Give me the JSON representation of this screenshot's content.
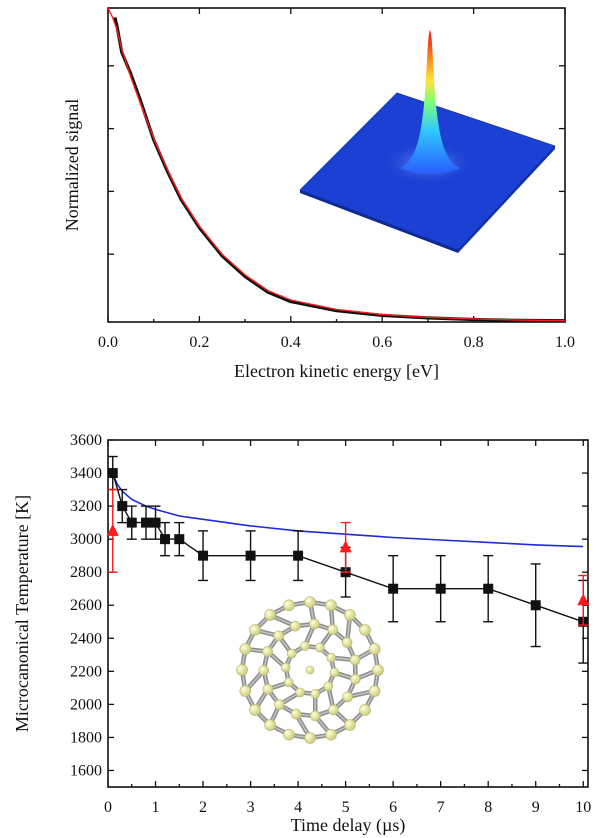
{
  "colors": {
    "black_series": "#111111",
    "red_series": "#ff1a1a",
    "blue_series": "#1f2bd6",
    "inset_surface": "#1a3fd0",
    "molecule": "#e6e69a",
    "bonds": "#9a9a9a"
  },
  "chart_data": [
    {
      "type": "line",
      "title": "",
      "xlabel": "Electron kinetic energy [eV]",
      "ylabel": "Normalized signal",
      "xlim": [
        0.0,
        1.0
      ],
      "ylim": [
        0.0,
        1.0
      ],
      "x_ticks": [
        "0.0",
        "0.2",
        "0.4",
        "0.6",
        "0.8",
        "1.0"
      ],
      "y_ticks_labeled": false,
      "grid": false,
      "inset": "3D surface plot of a sharp central peak (velocity map image)",
      "series": [
        {
          "color": "#111111",
          "x": [
            0.015,
            0.02,
            0.03,
            0.05,
            0.07,
            0.1,
            0.13,
            0.16,
            0.2,
            0.25,
            0.3,
            0.35,
            0.4,
            0.5,
            0.6,
            0.7,
            0.8,
            0.9,
            1.0
          ],
          "y": [
            0.97,
            0.94,
            0.86,
            0.79,
            0.71,
            0.58,
            0.48,
            0.39,
            0.3,
            0.21,
            0.145,
            0.095,
            0.065,
            0.036,
            0.021,
            0.013,
            0.008,
            0.005,
            0.004
          ]
        },
        {
          "color": "#ff1a1a",
          "x": [
            0.0,
            0.01,
            0.02,
            0.03,
            0.05,
            0.07,
            0.1,
            0.13,
            0.16,
            0.2,
            0.25,
            0.3,
            0.35,
            0.4,
            0.5,
            0.6,
            0.7,
            0.8,
            0.9,
            1.0
          ],
          "y": [
            1.0,
            0.97,
            0.93,
            0.87,
            0.78,
            0.7,
            0.585,
            0.485,
            0.395,
            0.305,
            0.215,
            0.15,
            0.1,
            0.07,
            0.04,
            0.024,
            0.015,
            0.01,
            0.006,
            0.004
          ]
        }
      ]
    },
    {
      "type": "scatter",
      "title": "",
      "xlabel": "Time delay (µs)",
      "ylabel": "Microcanonical Temperature [K]",
      "xlim": [
        0,
        10.1
      ],
      "ylim": [
        1500,
        3600
      ],
      "x_ticks": [
        "0",
        "1",
        "2",
        "3",
        "4",
        "5",
        "6",
        "7",
        "8",
        "9",
        "10"
      ],
      "y_ticks": [
        "1600",
        "1800",
        "2000",
        "2200",
        "2400",
        "2600",
        "2800",
        "3000",
        "3200",
        "3400",
        "3600"
      ],
      "grid": false,
      "inset": "ball-and-stick C60 fullerene molecule",
      "series": [
        {
          "marker": "square",
          "color": "#111111",
          "connected": true,
          "x": [
            0.1,
            0.3,
            0.5,
            0.8,
            1.0,
            1.2,
            1.5,
            2.0,
            3.0,
            4.0,
            5.0,
            6.0,
            7.0,
            8.0,
            9.0,
            10.0
          ],
          "y": [
            3400,
            3200,
            3100,
            3100,
            3100,
            3000,
            3000,
            2900,
            2900,
            2900,
            2800,
            2700,
            2700,
            2700,
            2600,
            2500
          ],
          "err": [
            100,
            100,
            100,
            100,
            100,
            100,
            100,
            150,
            150,
            150,
            150,
            200,
            200,
            200,
            250,
            250
          ]
        },
        {
          "marker": "triangle",
          "color": "#ff1a1a",
          "connected": false,
          "x": [
            0.1,
            5.0,
            10.0
          ],
          "y": [
            3050,
            2950,
            2630
          ],
          "err": [
            250,
            150,
            150
          ]
        },
        {
          "marker": "none",
          "color": "#1f2bd6",
          "connected": true,
          "x": [
            0.1,
            0.2,
            0.3,
            0.5,
            0.8,
            1.0,
            1.5,
            2.0,
            3.0,
            4.0,
            5.0,
            6.0,
            7.0,
            8.0,
            9.0,
            10.0
          ],
          "y": [
            3390,
            3330,
            3290,
            3240,
            3200,
            3180,
            3140,
            3120,
            3080,
            3050,
            3030,
            3010,
            2995,
            2980,
            2965,
            2955
          ]
        }
      ]
    }
  ]
}
